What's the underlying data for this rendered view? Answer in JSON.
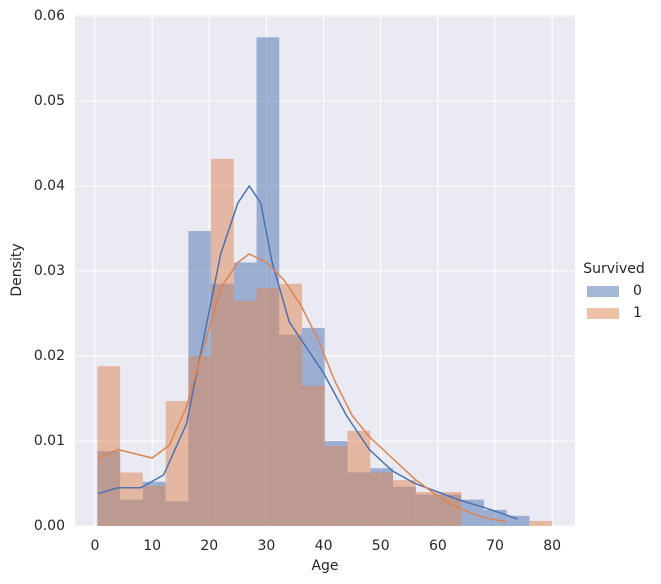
{
  "chart_data": {
    "type": "histogram",
    "x_label": "Age",
    "y_label": "Density",
    "legend_title": "Survived",
    "legend": "right",
    "bins": [
      0.42,
      4.4,
      8.38,
      12.36,
      16.34,
      20.32,
      24.29,
      28.27,
      32.25,
      36.23,
      40.21,
      44.19,
      48.17,
      52.15,
      56.13,
      60.11,
      64.09,
      68.07,
      72.05,
      76.03,
      80.0
    ],
    "series": [
      {
        "name": "0",
        "color": "#4c72b0",
        "values": [
          0.0088,
          0.0031,
          0.0052,
          0.0029,
          0.0347,
          0.0285,
          0.031,
          0.0575,
          0.0225,
          0.0233,
          0.01,
          0.0063,
          0.0068,
          0.0046,
          0.0037,
          0.0037,
          0.0031,
          0.0019,
          0.0012,
          0
        ],
        "kde_x": [
          0.5,
          4,
          8,
          12,
          16,
          19,
          22,
          25,
          27,
          29,
          31,
          34,
          37,
          40,
          44,
          48,
          52,
          56,
          60,
          64,
          68,
          72,
          74
        ],
        "kde_y": [
          0.0038,
          0.0045,
          0.0045,
          0.006,
          0.012,
          0.022,
          0.032,
          0.038,
          0.04,
          0.038,
          0.031,
          0.024,
          0.021,
          0.018,
          0.013,
          0.009,
          0.0065,
          0.005,
          0.004,
          0.003,
          0.0022,
          0.0013,
          0.0008
        ]
      },
      {
        "name": "1",
        "color": "#dd8452",
        "values": [
          0.0188,
          0.0063,
          0.0047,
          0.0147,
          0.02,
          0.0432,
          0.0265,
          0.028,
          0.0285,
          0.0165,
          0.0094,
          0.0112,
          0.0063,
          0.0054,
          0.004,
          0.004,
          0,
          0,
          0,
          0.0006
        ],
        "kde_x": [
          0.5,
          4,
          7,
          10,
          13,
          16,
          19,
          22,
          25,
          27,
          30,
          33,
          36,
          39,
          42,
          45,
          48,
          52,
          56,
          60,
          64,
          68,
          72
        ],
        "kde_y": [
          0.008,
          0.009,
          0.0085,
          0.008,
          0.0095,
          0.014,
          0.021,
          0.028,
          0.031,
          0.032,
          0.031,
          0.029,
          0.026,
          0.022,
          0.017,
          0.013,
          0.0105,
          0.008,
          0.0055,
          0.0035,
          0.002,
          0.001,
          0.0005
        ]
      }
    ],
    "xlim": [
      -3.5,
      84
    ],
    "xticks": [
      0,
      10,
      20,
      30,
      40,
      50,
      60,
      70,
      80
    ],
    "ylim": [
      0,
      0.06
    ],
    "yticks": [
      {
        "value": 0,
        "label": "0.00"
      },
      {
        "value": 0.01,
        "label": "0.01"
      },
      {
        "value": 0.02,
        "label": "0.02"
      },
      {
        "value": 0.03,
        "label": "0.03"
      },
      {
        "value": 0.04,
        "label": "0.04"
      },
      {
        "value": 0.05,
        "label": "0.05"
      },
      {
        "value": 0.06,
        "label": "0.06"
      }
    ],
    "grid": true
  }
}
